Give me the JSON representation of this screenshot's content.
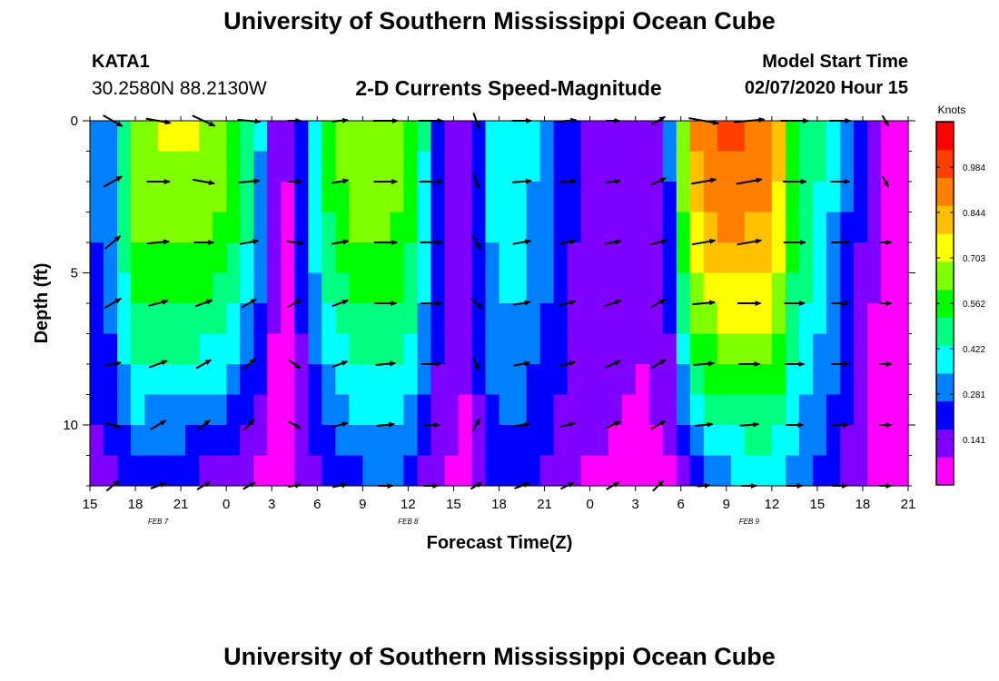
{
  "header": {
    "title": "University of Southern Mississippi Ocean Cube",
    "station_id": "KATA1",
    "coordinates": "30.2580N 88.2130W",
    "subtitle": "2-D Currents Speed-Magnitude",
    "model_start_label": "Model Start Time",
    "model_start_value": "02/07/2020 Hour 15"
  },
  "footer": {
    "title": "University of Southern Mississippi Ocean Cube"
  },
  "chart_data": {
    "type": "heatmap",
    "xlabel": "Forecast Time(Z)",
    "ylabel": "Depth (ft)",
    "x_ticks": [
      "15",
      "18",
      "21",
      "0",
      "3",
      "6",
      "9",
      "12",
      "15",
      "18",
      "21",
      "0",
      "3",
      "6",
      "9",
      "12",
      "15",
      "18",
      "21"
    ],
    "x_range_hours": [
      0,
      54
    ],
    "date_labels": [
      {
        "label": "FEB 7",
        "hour": 4.5
      },
      {
        "label": "FEB 8",
        "hour": 21
      },
      {
        "label": "FEB 9",
        "hour": 43.5
      }
    ],
    "y_ticks": [
      0,
      5,
      10
    ],
    "ylim": [
      0,
      12
    ],
    "colorbar": {
      "unit": "Knots",
      "min": 0,
      "max": 1.125,
      "ticks": [
        0.984,
        0.844,
        0.703,
        0.562,
        0.422,
        0.281,
        0.141
      ],
      "colors": [
        "#ff00ff",
        "#8000ff",
        "#0000ff",
        "#0080ff",
        "#00ffff",
        "#00ff80",
        "#00ff00",
        "#80ff00",
        "#ffff00",
        "#ffc000",
        "#ff8000",
        "#ff4000",
        "#ff0000"
      ]
    },
    "grid_rows": 12,
    "column_speed_profiles": [
      {
        "hour": 0.0,
        "surface": 0.25,
        "bottom": 0.14
      },
      {
        "hour": 1.5,
        "surface": 0.35,
        "bottom": 0.16
      },
      {
        "hour": 3.0,
        "surface": 0.68,
        "bottom": 0.2
      },
      {
        "hour": 5.0,
        "surface": 0.7,
        "bottom": 0.18
      },
      {
        "hour": 7.0,
        "surface": 0.7,
        "bottom": 0.15
      },
      {
        "hour": 9.0,
        "surface": 0.66,
        "bottom": 0.1
      },
      {
        "hour": 11.0,
        "surface": 0.42,
        "bottom": 0.05
      },
      {
        "hour": 12.0,
        "surface": 0.14,
        "bottom": 0.03
      },
      {
        "hour": 13.0,
        "surface": 0.08,
        "bottom": 0.04
      },
      {
        "hour": 14.5,
        "surface": 0.35,
        "bottom": 0.1
      },
      {
        "hour": 16.0,
        "surface": 0.6,
        "bottom": 0.18
      },
      {
        "hour": 17.5,
        "surface": 0.68,
        "bottom": 0.22
      },
      {
        "hour": 20.0,
        "surface": 0.68,
        "bottom": 0.25
      },
      {
        "hour": 21.5,
        "surface": 0.55,
        "bottom": 0.18
      },
      {
        "hour": 23.0,
        "surface": 0.25,
        "bottom": 0.1
      },
      {
        "hour": 24.5,
        "surface": 0.08,
        "bottom": 0.05
      },
      {
        "hour": 26.5,
        "surface": 0.38,
        "bottom": 0.18
      },
      {
        "hour": 28.0,
        "surface": 0.42,
        "bottom": 0.22
      },
      {
        "hour": 30.0,
        "surface": 0.32,
        "bottom": 0.15
      },
      {
        "hour": 32.5,
        "surface": 0.15,
        "bottom": 0.08
      },
      {
        "hour": 35.0,
        "surface": 0.1,
        "bottom": 0.08
      },
      {
        "hour": 37.0,
        "surface": 0.12,
        "bottom": 0.06
      },
      {
        "hour": 38.5,
        "surface": 0.3,
        "bottom": 0.06
      },
      {
        "hour": 39.5,
        "surface": 0.85,
        "bottom": 0.12
      },
      {
        "hour": 42.0,
        "surface": 0.98,
        "bottom": 0.3
      },
      {
        "hour": 45.0,
        "surface": 0.92,
        "bottom": 0.32
      },
      {
        "hour": 46.5,
        "surface": 0.55,
        "bottom": 0.3
      },
      {
        "hour": 48.5,
        "surface": 0.42,
        "bottom": 0.22
      },
      {
        "hour": 50.5,
        "surface": 0.22,
        "bottom": 0.1
      },
      {
        "hour": 52.0,
        "surface": 0.08,
        "bottom": 0.04
      },
      {
        "hour": 54.0,
        "surface": 0.03,
        "bottom": 0.02
      }
    ],
    "vector_rows_depth_ft": [
      0,
      2,
      4,
      6,
      8,
      10,
      12
    ],
    "vector_hours": [
      1.5,
      4.5,
      7.5,
      10.5,
      13.5,
      16.5,
      19.5,
      22.5,
      25.5,
      28.5,
      31.5,
      34.5,
      37.5,
      40.5,
      43.5,
      46.5,
      49.5,
      52.5
    ],
    "vector_directions_deg_by_hour": [
      [
        -30,
        30,
        40,
        30,
        10,
        -15,
        40
      ],
      [
        -10,
        0,
        5,
        15,
        20,
        30,
        20
      ],
      [
        -25,
        -10,
        0,
        20,
        30,
        35,
        30
      ],
      [
        -5,
        5,
        10,
        30,
        40,
        45,
        30
      ],
      [
        0,
        0,
        -10,
        30,
        -35,
        -30,
        10
      ],
      [
        5,
        10,
        10,
        20,
        20,
        15,
        10
      ],
      [
        0,
        0,
        0,
        0,
        5,
        5,
        0
      ],
      [
        0,
        0,
        0,
        0,
        0,
        0,
        0
      ],
      [
        -70,
        -70,
        -60,
        -45,
        -70,
        60,
        30
      ],
      [
        0,
        5,
        10,
        10,
        10,
        10,
        20
      ],
      [
        5,
        5,
        10,
        15,
        15,
        15,
        25
      ],
      [
        0,
        5,
        10,
        20,
        25,
        25,
        30
      ],
      [
        30,
        25,
        15,
        30,
        30,
        30,
        45
      ],
      [
        -10,
        10,
        10,
        5,
        5,
        5,
        5
      ],
      [
        5,
        10,
        10,
        0,
        0,
        5,
        0
      ],
      [
        0,
        0,
        0,
        0,
        0,
        0,
        0
      ],
      [
        0,
        0,
        0,
        0,
        0,
        0,
        0
      ],
      [
        -60,
        -60,
        0,
        0,
        0,
        0,
        0
      ]
    ],
    "vector_magnitudes_knots_by_hour": [
      [
        0.55,
        0.5,
        0.45,
        0.4,
        0.3,
        0.25,
        0.25
      ],
      [
        0.7,
        0.6,
        0.55,
        0.45,
        0.4,
        0.35,
        0.25
      ],
      [
        0.68,
        0.55,
        0.45,
        0.35,
        0.3,
        0.25,
        0.2
      ],
      [
        0.6,
        0.5,
        0.4,
        0.3,
        0.25,
        0.2,
        0.15
      ],
      [
        0.1,
        0.15,
        0.3,
        0.25,
        0.15,
        0.15,
        0.1
      ],
      [
        0.25,
        0.3,
        0.3,
        0.3,
        0.25,
        0.25,
        0.2
      ],
      [
        0.68,
        0.62,
        0.6,
        0.55,
        0.45,
        0.35,
        0.2
      ],
      [
        0.65,
        0.6,
        0.55,
        0.5,
        0.4,
        0.3,
        0.18
      ],
      [
        0.3,
        0.25,
        0.2,
        0.2,
        0.15,
        0.15,
        0.1
      ],
      [
        0.42,
        0.4,
        0.35,
        0.3,
        0.28,
        0.25,
        0.22
      ],
      [
        0.35,
        0.32,
        0.3,
        0.28,
        0.25,
        0.22,
        0.18
      ],
      [
        0.15,
        0.2,
        0.28,
        0.3,
        0.28,
        0.25,
        0.18
      ],
      [
        0.25,
        0.28,
        0.3,
        0.28,
        0.3,
        0.3,
        0.2
      ],
      [
        0.95,
        0.7,
        0.62,
        0.58,
        0.5,
        0.35,
        0.1
      ],
      [
        0.98,
        0.75,
        0.68,
        0.62,
        0.52,
        0.4,
        0.2
      ],
      [
        0.85,
        0.62,
        0.55,
        0.48,
        0.4,
        0.32,
        0.25
      ],
      [
        0.5,
        0.4,
        0.35,
        0.3,
        0.3,
        0.28,
        0.2
      ],
      [
        0.06,
        0.05,
        0.05,
        0.05,
        0.05,
        0.05,
        0.05
      ]
    ]
  }
}
